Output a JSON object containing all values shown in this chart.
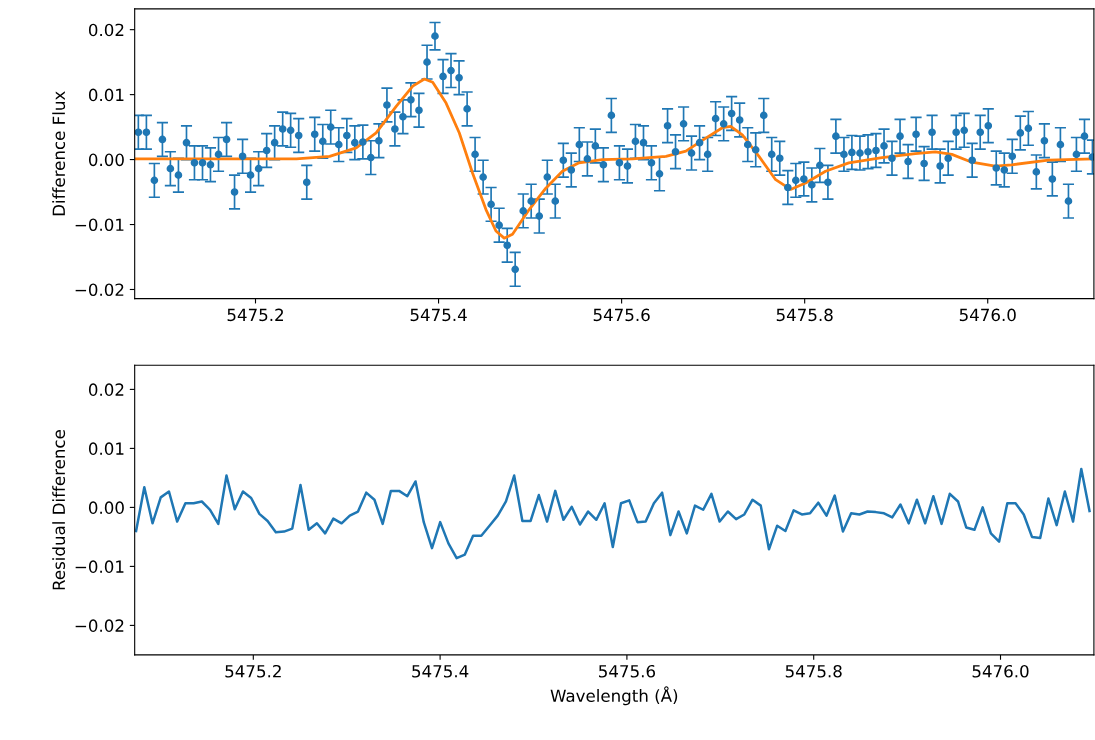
{
  "chart_data": [
    {
      "type": "scatter",
      "ylabel": "Difference Flux",
      "xlim": [
        5475.068,
        5476.116
      ],
      "ylim": [
        -0.0214,
        0.0232
      ],
      "xticks": [
        5475.2,
        5475.4,
        5475.6,
        5475.8,
        {
          "value": 5476.0,
          "label": "5476.0"
        }
      ],
      "yticks": [
        {
          "value": -0.02,
          "label": "−0.02"
        },
        {
          "value": -0.01,
          "label": "−0.01"
        },
        {
          "value": 0,
          "label": "0.00"
        },
        {
          "value": 0.01,
          "label": "0.01"
        },
        {
          "value": 0.02,
          "label": "0.02"
        }
      ],
      "grid": false,
      "series": [
        {
          "type": "scatter",
          "color": "#1f77b4",
          "marker": "circle",
          "x": [
            5475.072,
            5475.0808,
            5475.0895,
            5475.0983,
            5475.107,
            5475.1158,
            5475.1246,
            5475.1333,
            5475.1421,
            5475.1508,
            5475.1596,
            5475.1684,
            5475.1771,
            5475.1859,
            5475.1946,
            5475.2034,
            5475.2122,
            5475.2209,
            5475.2297,
            5475.2384,
            5475.2472,
            5475.256,
            5475.2647,
            5475.2735,
            5475.2822,
            5475.291,
            5475.2998,
            5475.3085,
            5475.3173,
            5475.326,
            5475.3348,
            5475.3436,
            5475.3523,
            5475.3611,
            5475.3698,
            5475.3786,
            5475.3874,
            5475.3961,
            5475.4049,
            5475.4136,
            5475.4224,
            5475.4312,
            5475.4399,
            5475.4487,
            5475.4574,
            5475.4662,
            5475.475,
            5475.4837,
            5475.4925,
            5475.5012,
            5475.51,
            5475.5188,
            5475.5275,
            5475.5363,
            5475.545,
            5475.5538,
            5475.5626,
            5475.5713,
            5475.5801,
            5475.5888,
            5475.5976,
            5475.6064,
            5475.6151,
            5475.6239,
            5475.6326,
            5475.6414,
            5475.6502,
            5475.6589,
            5475.6677,
            5475.6764,
            5475.6852,
            5475.694,
            5475.7027,
            5475.7115,
            5475.7202,
            5475.729,
            5475.7378,
            5475.7465,
            5475.7553,
            5475.764,
            5475.7728,
            5475.7816,
            5475.7903,
            5475.7991,
            5475.8078,
            5475.8166,
            5475.8254,
            5475.8341,
            5475.8429,
            5475.8516,
            5475.8604,
            5475.8692,
            5475.8779,
            5475.8867,
            5475.8954,
            5475.9042,
            5475.913,
            5475.9217,
            5475.9305,
            5475.9392,
            5475.948,
            5475.9568,
            5475.9655,
            5475.9743,
            5475.983,
            5475.9918,
            5476.0006,
            5476.0093,
            5476.0181,
            5476.0268,
            5476.0356,
            5476.0444,
            5476.0531,
            5476.0619,
            5476.0706,
            5476.0794,
            5476.0882,
            5476.0969,
            5476.1057,
            5476.1144
          ],
          "values": [
            0.0042,
            0.0042,
            -0.0032,
            0.0031,
            -0.0014,
            -0.0024,
            0.0026,
            -0.0005,
            -0.0005,
            -0.0008,
            0.0008,
            0.0031,
            -0.005,
            0.0005,
            -0.0024,
            -0.0014,
            0.0014,
            0.0026,
            0.0047,
            0.0045,
            0.0037,
            -0.0035,
            0.0039,
            0.0028,
            0.005,
            0.0023,
            0.0037,
            0.0026,
            0.0027,
            0.0003,
            0.0029,
            0.0084,
            0.0047,
            0.0066,
            0.0092,
            0.0076,
            0.015,
            0.019,
            0.0128,
            0.0137,
            0.0126,
            0.0078,
            0.0008,
            -0.0027,
            -0.0069,
            -0.0101,
            -0.0132,
            -0.0169,
            -0.0079,
            -0.0064,
            -0.0087,
            -0.0027,
            -0.0064,
            -0.0001,
            -0.0016,
            0.0023,
            0.0001,
            0.0021,
            -0.0008,
            0.0068,
            -0.0005,
            -0.001,
            0.0028,
            0.0026,
            -0.0005,
            -0.0022,
            0.0052,
            0.0012,
            0.0055,
            0.001,
            0.0026,
            0.0008,
            0.0063,
            0.0055,
            0.0071,
            0.0061,
            0.0023,
            0.0015,
            0.0068,
            0.0008,
            0.0002,
            -0.0043,
            -0.0032,
            -0.003,
            -0.0039,
            -0.0009,
            -0.0035,
            0.0036,
            0.0008,
            0.0011,
            0.001,
            0.0012,
            0.0014,
            0.0021,
            0.0002,
            0.0036,
            -0.0003,
            0.0039,
            -0.0006,
            0.0042,
            -0.001,
            0.0002,
            0.0042,
            0.0045,
            -0.0001,
            0.0042,
            0.0052,
            -0.0013,
            -0.0016,
            0.0005,
            0.0041,
            0.0048,
            -0.0019,
            0.0029,
            -0.003,
            0.0023,
            -0.0064,
            0.0008,
            0.0036,
            0.0004
          ],
          "errors": [
            0.0026,
            0.0026,
            0.0026,
            0.0026,
            0.0026,
            0.0026,
            0.0026,
            0.0026,
            0.0026,
            0.0026,
            0.0026,
            0.0026,
            0.0026,
            0.0026,
            0.0026,
            0.0026,
            0.0026,
            0.0026,
            0.0026,
            0.0026,
            0.0026,
            0.0026,
            0.0026,
            0.0026,
            0.0026,
            0.0026,
            0.0026,
            0.0026,
            0.0026,
            0.0026,
            0.0026,
            0.0026,
            0.0026,
            0.0026,
            0.0026,
            0.0026,
            0.0026,
            0.0021,
            0.0026,
            0.0026,
            0.0026,
            0.0026,
            0.0026,
            0.0026,
            0.0026,
            0.0026,
            0.0026,
            0.0026,
            0.0026,
            0.0026,
            0.0026,
            0.0026,
            0.0026,
            0.0026,
            0.0026,
            0.0026,
            0.0026,
            0.0026,
            0.0026,
            0.0026,
            0.0026,
            0.0026,
            0.0026,
            0.0026,
            0.0026,
            0.0026,
            0.0026,
            0.0026,
            0.0026,
            0.0026,
            0.0026,
            0.0026,
            0.0026,
            0.0026,
            0.0026,
            0.0026,
            0.0026,
            0.0026,
            0.0026,
            0.0026,
            0.0026,
            0.0026,
            0.0026,
            0.0026,
            0.0026,
            0.0026,
            0.0026,
            0.0026,
            0.0026,
            0.0026,
            0.0026,
            0.0026,
            0.0026,
            0.0026,
            0.0026,
            0.0026,
            0.0026,
            0.0026,
            0.0026,
            0.0026,
            0.0026,
            0.0026,
            0.0026,
            0.0026,
            0.0026,
            0.0026,
            0.0026,
            0.0026,
            0.0026,
            0.0026,
            0.0026,
            0.0026,
            0.0026,
            0.0026,
            0.0026,
            0.0026,
            0.0026,
            0.0026,
            0.0026,
            0.0026
          ]
        },
        {
          "type": "line",
          "color": "#ff7f0e",
          "x": [
            5475.0695,
            5475.2447,
            5475.281,
            5475.31,
            5475.3318,
            5475.3537,
            5475.3718,
            5475.3845,
            5475.3936,
            5475.4082,
            5475.4227,
            5475.4372,
            5475.4518,
            5475.4627,
            5475.4717,
            5475.4808,
            5475.499,
            5475.5172,
            5475.5353,
            5475.5535,
            5475.5789,
            5475.612,
            5475.6484,
            5475.6702,
            5475.692,
            5475.7101,
            5475.7192,
            5475.7319,
            5475.7501,
            5475.7683,
            5475.7846,
            5475.801,
            5475.8228,
            5475.8482,
            5475.8845,
            5475.9209,
            5475.9427,
            5475.9608,
            5475.9826,
            5476.0081,
            5476.0263,
            5476.0662,
            5476.1145
          ],
          "values": [
            0.0001,
            0.0001,
            0.0005,
            0.0018,
            0.0041,
            0.0082,
            0.0113,
            0.0124,
            0.0119,
            0.0087,
            0.0041,
            -0.0021,
            -0.0077,
            -0.011,
            -0.0121,
            -0.0115,
            -0.0077,
            -0.0044,
            -0.0018,
            -0.0005,
            0,
            0.0001,
            0.0005,
            0.0013,
            0.0033,
            0.0049,
            0.0051,
            0.0038,
            0.0005,
            -0.0031,
            -0.0046,
            -0.0036,
            -0.0018,
            -0.0005,
            0.0003,
            0.0009,
            0.0012,
            0.0008,
            -0.0004,
            -0.001,
            -0.0008,
            -0.0001,
            0.0001
          ]
        }
      ]
    },
    {
      "type": "line",
      "ylabel": "Residual Difference",
      "xlabel": "Wavelength (Å)",
      "xlim": [
        5475.073,
        5476.1
      ],
      "ylim": [
        -0.025,
        0.0241
      ],
      "xticks": [
        5475.2,
        5475.4,
        5475.6,
        5475.8,
        {
          "value": 5476.0,
          "label": "5476.0"
        }
      ],
      "yticks": [
        {
          "value": -0.02,
          "label": "−0.02"
        },
        {
          "value": -0.01,
          "label": "−0.01"
        },
        {
          "value": 0,
          "label": "0.00"
        },
        {
          "value": 0.01,
          "label": "0.01"
        },
        {
          "value": 0.02,
          "label": "0.02"
        }
      ],
      "grid": false,
      "series": [
        {
          "color": "#1f77b4",
          "x": [
            5475.0745,
            5475.0833,
            5475.0921,
            5475.1009,
            5475.1097,
            5475.1185,
            5475.1273,
            5475.1361,
            5475.1449,
            5475.1537,
            5475.1625,
            5475.1713,
            5475.1801,
            5475.1889,
            5475.1977,
            5475.2065,
            5475.2153,
            5475.2241,
            5475.2329,
            5475.2417,
            5475.2505,
            5475.2593,
            5475.2681,
            5475.2769,
            5475.2857,
            5475.2945,
            5475.3033,
            5475.3121,
            5475.3209,
            5475.3297,
            5475.3385,
            5475.3473,
            5475.3561,
            5475.3649,
            5475.3737,
            5475.3825,
            5475.3913,
            5475.4001,
            5475.4089,
            5475.4177,
            5475.4265,
            5475.4353,
            5475.4441,
            5475.4529,
            5475.4617,
            5475.4705,
            5475.4793,
            5475.4881,
            5475.4969,
            5475.5057,
            5475.5145,
            5475.5233,
            5475.5321,
            5475.5409,
            5475.5497,
            5475.5585,
            5475.5673,
            5475.5761,
            5475.5849,
            5475.5937,
            5475.6025,
            5475.6113,
            5475.6201,
            5475.6289,
            5475.6377,
            5475.6465,
            5475.6553,
            5475.6641,
            5475.6729,
            5475.6817,
            5475.6905,
            5475.6993,
            5475.7081,
            5475.7169,
            5475.7257,
            5475.7345,
            5475.7433,
            5475.7521,
            5475.7609,
            5475.7697,
            5475.7785,
            5475.7873,
            5475.7961,
            5475.8049,
            5475.8137,
            5475.8225,
            5475.8313,
            5475.8401,
            5475.8489,
            5475.8577,
            5475.8665,
            5475.8753,
            5475.8841,
            5475.8929,
            5475.9017,
            5475.9105,
            5475.9193,
            5475.9281,
            5475.9369,
            5475.9457,
            5475.9545,
            5475.9633,
            5475.9721,
            5475.9809,
            5475.9897,
            5475.9985,
            5476.0073,
            5476.0161,
            5476.0249,
            5476.0337,
            5476.0425,
            5476.0513,
            5476.0601,
            5476.0689,
            5476.0777,
            5476.0865,
            5476.0953
          ],
          "values": [
            -0.004,
            0.0034,
            -0.0027,
            0.0017,
            0.0027,
            -0.0024,
            0.0007,
            0.0007,
            0.001,
            -0.0004,
            -0.0028,
            0.0054,
            -0.0003,
            0.0027,
            0.0016,
            -0.0011,
            -0.0023,
            -0.0042,
            -0.0041,
            -0.0036,
            0.0038,
            -0.0038,
            -0.0027,
            -0.0044,
            -0.0019,
            -0.0027,
            -0.0014,
            -0.0007,
            0.0025,
            0.0013,
            -0.0028,
            0.0028,
            0.0028,
            0.0019,
            0.0044,
            -0.0025,
            -0.0069,
            -0.0025,
            -0.0061,
            -0.0086,
            -0.008,
            -0.0048,
            -0.0048,
            -0.0031,
            -0.0014,
            0.001,
            0.0054,
            -0.0023,
            -0.0023,
            0.0021,
            -0.0024,
            0.0028,
            -0.0021,
            0.0001,
            -0.0029,
            -0.0007,
            -0.0021,
            0.0007,
            -0.0067,
            0.0007,
            0.0012,
            -0.0025,
            -0.0024,
            0.0007,
            0.0025,
            -0.0047,
            -0.0007,
            -0.0044,
            0.0003,
            -0.0004,
            0.0023,
            -0.0024,
            -0.0007,
            -0.002,
            -0.0012,
            0.0013,
            0.0003,
            -0.0071,
            -0.0031,
            -0.004,
            -0.0005,
            -0.0012,
            -0.001,
            0.0008,
            -0.0014,
            0.002,
            -0.0041,
            -0.001,
            -0.0012,
            -0.0007,
            -0.0008,
            -0.001,
            -0.0017,
            0.0005,
            -0.0027,
            0.0013,
            -0.0027,
            0.0019,
            -0.0028,
            0.0023,
            0.001,
            -0.0034,
            -0.0038,
            0.0,
            -0.0044,
            -0.0058,
            0.0007,
            0.0007,
            -0.0012,
            -0.005,
            -0.0052,
            0.0015,
            -0.003,
            0.0027,
            -0.0024,
            0.0065,
            -0.0006
          ]
        }
      ]
    }
  ]
}
